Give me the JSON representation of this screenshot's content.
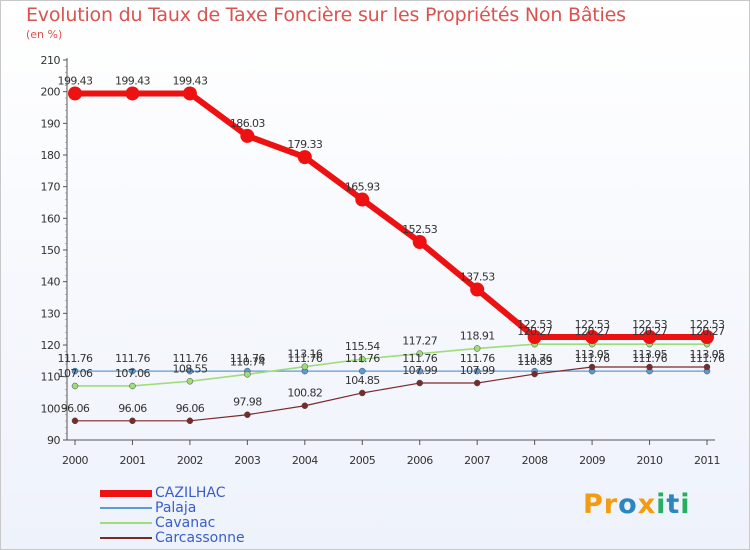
{
  "header": {
    "title": "Evolution du Taux de Taxe Foncière sur les Propriétés Non Bâties",
    "subtitle": "(en %)"
  },
  "logo": {
    "text": "Proxiti",
    "letters": [
      "P",
      "r",
      "o",
      "x",
      "i",
      "t",
      "i"
    ],
    "colors": [
      "#f39c12",
      "#f39c12",
      "#2e86c1",
      "#f39c12",
      "#27ae60",
      "#2e86c1",
      "#27ae60"
    ]
  },
  "chart_data": {
    "type": "line",
    "title": "Evolution du Taux de Taxe Foncière sur les Propriétés Non Bâties",
    "ylabel": "(en %)",
    "xlabel": "",
    "ylim": [
      90,
      210
    ],
    "yticks": [
      90,
      100,
      110,
      120,
      130,
      140,
      150,
      160,
      170,
      180,
      190,
      200,
      210
    ],
    "categories": [
      "2000",
      "2001",
      "2002",
      "2003",
      "2004",
      "2005",
      "2006",
      "2007",
      "2008",
      "2009",
      "2010",
      "2011"
    ],
    "grid": false,
    "series": [
      {
        "name": "CAZILHAC",
        "color": "#ee1111",
        "width": 6,
        "marker": 7,
        "values": [
          199.43,
          199.43,
          199.43,
          186.03,
          179.33,
          165.93,
          152.53,
          137.53,
          122.53,
          122.53,
          122.53,
          122.53
        ],
        "labels": [
          "199.43",
          "199.43",
          "199.43",
          "186.03",
          "179.33",
          "165.93",
          "152.53",
          "137.53",
          "122.53",
          "122.53",
          "122.53",
          "122.53"
        ]
      },
      {
        "name": "Palaja",
        "color": "#5c9bd5",
        "width": 1.2,
        "marker": 3,
        "values": [
          111.76,
          111.76,
          111.76,
          111.76,
          111.76,
          111.76,
          111.76,
          111.76,
          111.76,
          111.76,
          111.76,
          111.76
        ],
        "labels": [
          "111.76",
          "111.76",
          "111.76",
          "111.76",
          "111.76",
          "111.76",
          "111.76",
          "111.76",
          "111.76",
          "111.76",
          "111.76",
          "111.76"
        ]
      },
      {
        "name": "Cavanac",
        "color": "#9fdc7a",
        "width": 1.6,
        "marker": 3,
        "values": [
          107.06,
          107.06,
          108.55,
          110.74,
          113.16,
          115.54,
          117.27,
          118.91,
          120.27,
          120.27,
          120.27,
          120.27
        ],
        "labels": [
          "107.06",
          "107.06",
          "108.55",
          "110.74",
          "113.16",
          "115.54",
          "117.27",
          "118.91",
          "120.27",
          "120.27",
          "120.27",
          "120.27"
        ]
      },
      {
        "name": "Carcassonne",
        "color": "#7b2a2a",
        "width": 1.2,
        "marker": 3,
        "values": [
          96.06,
          96.06,
          96.06,
          97.98,
          100.82,
          104.85,
          107.99,
          107.99,
          110.83,
          113.05,
          113.05,
          113.05
        ],
        "labels": [
          "96.06",
          "96.06",
          "96.06",
          "97.98",
          "100.82",
          "104.85",
          "107.99",
          "107.99",
          "110.83",
          "113.05",
          "113.05",
          "113.05"
        ]
      }
    ],
    "legend": [
      "CAZILHAC",
      "Palaja",
      "Cavanac",
      "Carcassonne"
    ]
  }
}
